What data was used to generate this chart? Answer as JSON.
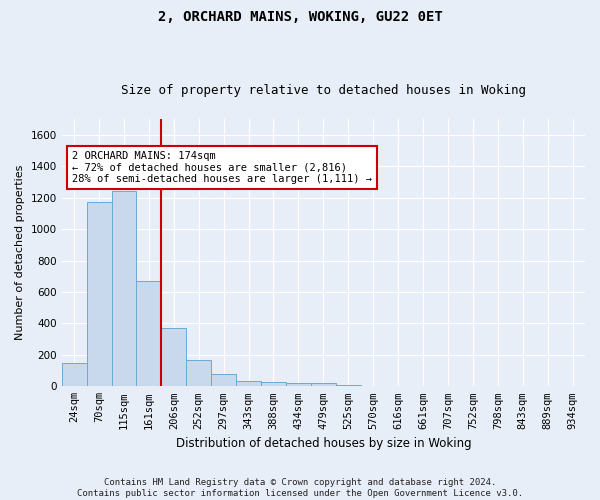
{
  "title": "2, ORCHARD MAINS, WOKING, GU22 0ET",
  "subtitle": "Size of property relative to detached houses in Woking",
  "xlabel": "Distribution of detached houses by size in Woking",
  "ylabel": "Number of detached properties",
  "categories": [
    "24sqm",
    "70sqm",
    "115sqm",
    "161sqm",
    "206sqm",
    "252sqm",
    "297sqm",
    "343sqm",
    "388sqm",
    "434sqm",
    "479sqm",
    "525sqm",
    "570sqm",
    "616sqm",
    "661sqm",
    "707sqm",
    "752sqm",
    "798sqm",
    "843sqm",
    "889sqm",
    "934sqm"
  ],
  "values": [
    150,
    1170,
    1240,
    670,
    370,
    165,
    80,
    35,
    25,
    20,
    18,
    10,
    0,
    0,
    0,
    0,
    0,
    0,
    0,
    0,
    0
  ],
  "bar_color": "#c8d9ee",
  "bar_edge_color": "#6aaad4",
  "vline_color": "#cc0000",
  "vline_x_idx": 3,
  "annotation_line1": "2 ORCHARD MAINS: 174sqm",
  "annotation_line2": "← 72% of detached houses are smaller (2,816)",
  "annotation_line3": "28% of semi-detached houses are larger (1,111) →",
  "annotation_box_color": "#ffffff",
  "annotation_box_edge_color": "#cc0000",
  "ylim": [
    0,
    1700
  ],
  "yticks": [
    0,
    200,
    400,
    600,
    800,
    1000,
    1200,
    1400,
    1600
  ],
  "bg_color": "#e8eef8",
  "plot_bg_color": "#e8eef8",
  "grid_color": "#ffffff",
  "footer": "Contains HM Land Registry data © Crown copyright and database right 2024.\nContains public sector information licensed under the Open Government Licence v3.0.",
  "title_fontsize": 10,
  "subtitle_fontsize": 9,
  "xlabel_fontsize": 8.5,
  "ylabel_fontsize": 8,
  "tick_fontsize": 7.5,
  "ann_fontsize": 7.5,
  "footer_fontsize": 6.5
}
